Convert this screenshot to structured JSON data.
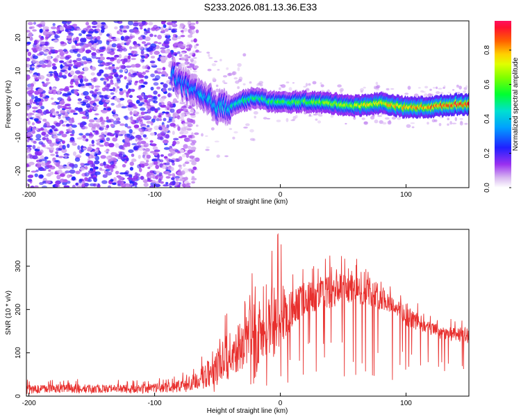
{
  "title": "S233.2026.081.13.36.E33",
  "colors": {
    "trace": "#e8302e",
    "frame": "#000000"
  },
  "chart_data": [
    {
      "type": "heatmap",
      "title": "S233.2026.081.13.36.E33",
      "xlabel": "Height of straight line (km)",
      "ylabel": "Frequency (Hz)",
      "xlim": [
        -202,
        150
      ],
      "ylim": [
        -25,
        25
      ],
      "xticks": [
        -200,
        -100,
        0,
        100
      ],
      "yticks": [
        20,
        10,
        0,
        -10,
        -20
      ],
      "colorbar": {
        "label": "Normalized spectral amplitude",
        "range": [
          0,
          0.97
        ],
        "ticks": [
          0.0,
          0.2,
          0.4,
          0.6,
          0.8
        ],
        "tick_labels": [
          "0.0",
          "0.2",
          "0.4",
          "0.6",
          "0.8"
        ],
        "colormap": "rainbow (magenta-blue-cyan-green-yellow-red)"
      },
      "ridge": {
        "description": "dominant frequency track",
        "x": [
          -85,
          -78,
          -70,
          -62,
          -55,
          -48,
          -40,
          -30,
          -20,
          -10,
          0,
          20,
          40,
          60,
          80,
          100,
          120,
          140,
          150
        ],
        "freq": [
          9,
          6,
          4,
          2,
          0.5,
          -1,
          -0.5,
          1,
          2,
          1,
          0.5,
          0.8,
          0.3,
          -0.5,
          0.4,
          -1,
          -0.8,
          0,
          0
        ]
      },
      "noise_region_x": [
        -202,
        -80
      ]
    },
    {
      "type": "line",
      "xlabel": "Height of straight line (km)",
      "ylabel": "SNR (10 * v/v)",
      "xlim": [
        -202,
        150
      ],
      "ylim": [
        0,
        385
      ],
      "xticks": [
        -200,
        -100,
        0,
        100
      ],
      "yticks": [
        0,
        100,
        200,
        300
      ],
      "series": [
        {
          "name": "SNR",
          "color": "#e8302e",
          "x": [
            -202,
            -180,
            -160,
            -140,
            -120,
            -100,
            -80,
            -70,
            -60,
            -50,
            -40,
            -30,
            -20,
            -10,
            -5,
            0,
            10,
            20,
            30,
            40,
            50,
            60,
            70,
            80,
            90,
            100,
            110,
            120,
            130,
            140,
            150
          ],
          "y_base": [
            15,
            18,
            17,
            17,
            16,
            18,
            22,
            30,
            45,
            70,
            95,
            120,
            140,
            160,
            175,
            175,
            200,
            230,
            230,
            240,
            245,
            245,
            240,
            230,
            210,
            185,
            170,
            155,
            145,
            140,
            140
          ],
          "y_peak": [
            38,
            40,
            40,
            38,
            38,
            42,
            52,
            75,
            105,
            190,
            210,
            255,
            320,
            300,
            355,
            385,
            300,
            310,
            305,
            330,
            330,
            320,
            310,
            300,
            250,
            235,
            215,
            190,
            185,
            175,
            190
          ]
        }
      ]
    }
  ]
}
